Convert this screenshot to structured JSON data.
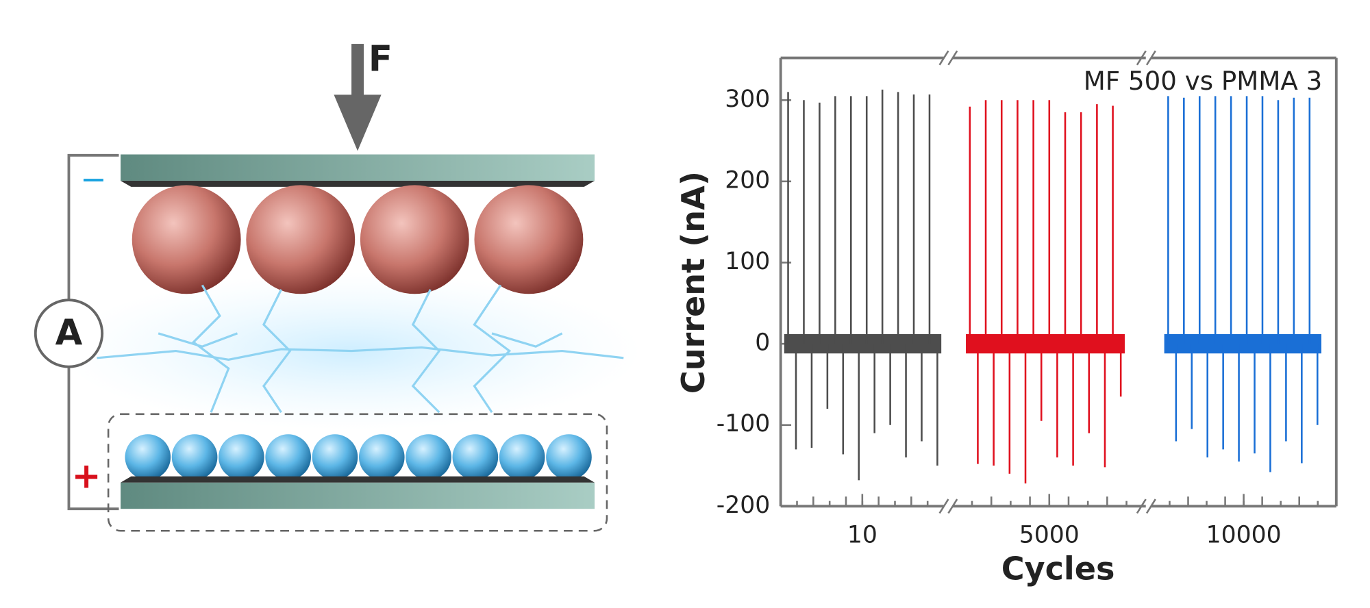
{
  "diagram": {
    "force_label": "F",
    "ammeter_label": "A",
    "top_sign": "−",
    "bottom_sign": "+"
  },
  "chart_data": {
    "type": "spike-trace",
    "annotation": "MF 500 vs PMMA 3",
    "x_label": "Cycles",
    "y_label": "Current (nA)",
    "xticks": [
      10,
      5000,
      10000
    ],
    "ylim": [
      -200,
      352
    ],
    "yticks": [
      300,
      200,
      100,
      0,
      -100,
      -200
    ],
    "series": [
      {
        "color": "#4d4d4d",
        "values": [
          310,
          -130,
          300,
          -128,
          297,
          -80,
          305,
          -136,
          305,
          -168,
          305,
          -110,
          313,
          -100,
          310,
          -140,
          307,
          -120,
          307,
          -150
        ]
      },
      {
        "color": "#e0101e",
        "values": [
          292,
          -148,
          300,
          -150,
          300,
          -160,
          300,
          -172,
          300,
          -95,
          300,
          -140,
          285,
          -150,
          285,
          -110,
          295,
          -152,
          293,
          -65
        ]
      },
      {
        "color": "#1a6fd6",
        "values": [
          305,
          -120,
          303,
          -105,
          305,
          -140,
          305,
          -130,
          305,
          -145,
          305,
          -135,
          305,
          -158,
          300,
          -120,
          303,
          -147,
          303,
          -100
        ]
      }
    ]
  }
}
